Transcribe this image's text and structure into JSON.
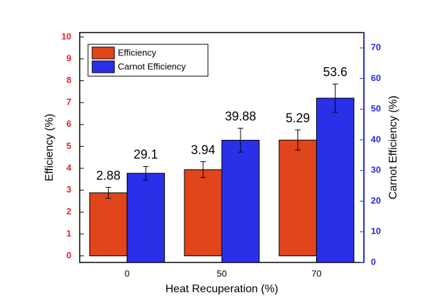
{
  "chart_data": {
    "type": "bar",
    "categories": [
      "0",
      "50",
      "70"
    ],
    "xlabel": "Heat Recuperation (%)",
    "ylabel": "Efficiency (%)",
    "y2label": "Carnot Efficiency (%)",
    "ylim": [
      -0.3,
      10.2
    ],
    "yticks": [
      0,
      1,
      2,
      3,
      4,
      5,
      6,
      7,
      8,
      9,
      10
    ],
    "ycolor": "#e8202a",
    "y2lim": [
      0,
      75
    ],
    "y2ticks": [
      0,
      10,
      20,
      30,
      40,
      50,
      60,
      70
    ],
    "y2color": "#2b2bd9",
    "legend": "upper left",
    "series": [
      {
        "name": "Efficiency",
        "color": "#e0451b",
        "values": [
          2.88,
          3.94,
          5.29
        ],
        "errors": [
          0.25,
          0.36,
          0.46
        ]
      },
      {
        "name": "Carnot Efficiency",
        "color": "#2a30e8",
        "axis": "y2",
        "values": [
          29.1,
          39.88,
          53.6
        ],
        "errors": [
          2.2,
          3.9,
          4.6
        ]
      }
    ]
  }
}
